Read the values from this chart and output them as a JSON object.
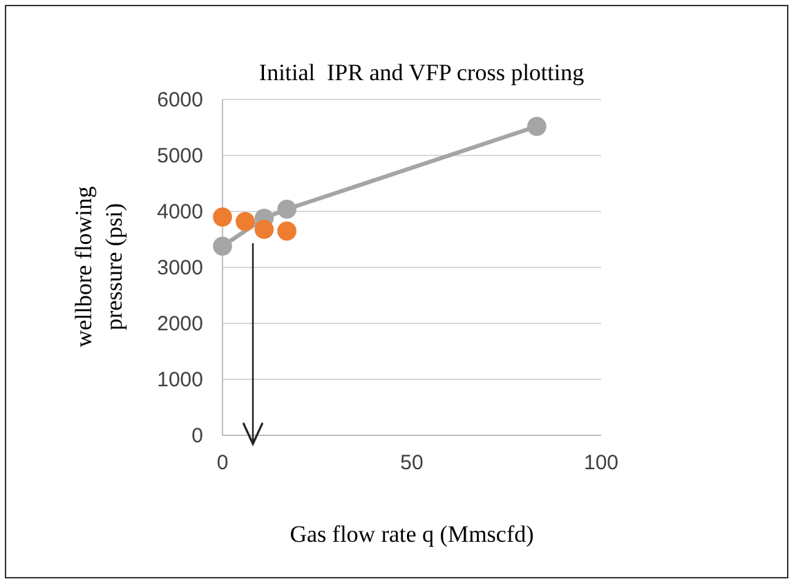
{
  "chart_data": {
    "type": "scatter",
    "title": "Initial  IPR and VFP cross plotting",
    "xlabel": "Gas flow rate q (Mmscfd)",
    "ylabel": "wellbore  flowing pressure  (psi)",
    "series": [
      {
        "type": "line",
        "color": "#a5a5a5",
        "x": [
          0,
          11,
          17,
          83
        ],
        "values": [
          3380,
          3880,
          4040,
          5520
        ]
      },
      {
        "color": "#ed7d31",
        "x": [
          0,
          6,
          11,
          17
        ],
        "values": [
          3900,
          3820,
          3680,
          3650
        ]
      }
    ],
    "xlim": [
      0,
      100
    ],
    "xticks": [
      0,
      50,
      100
    ],
    "ylim": [
      0,
      6000
    ],
    "yticks": [
      0,
      1000,
      2000,
      3000,
      4000,
      5000,
      6000
    ],
    "grid": "y",
    "marker": "circle"
  }
}
